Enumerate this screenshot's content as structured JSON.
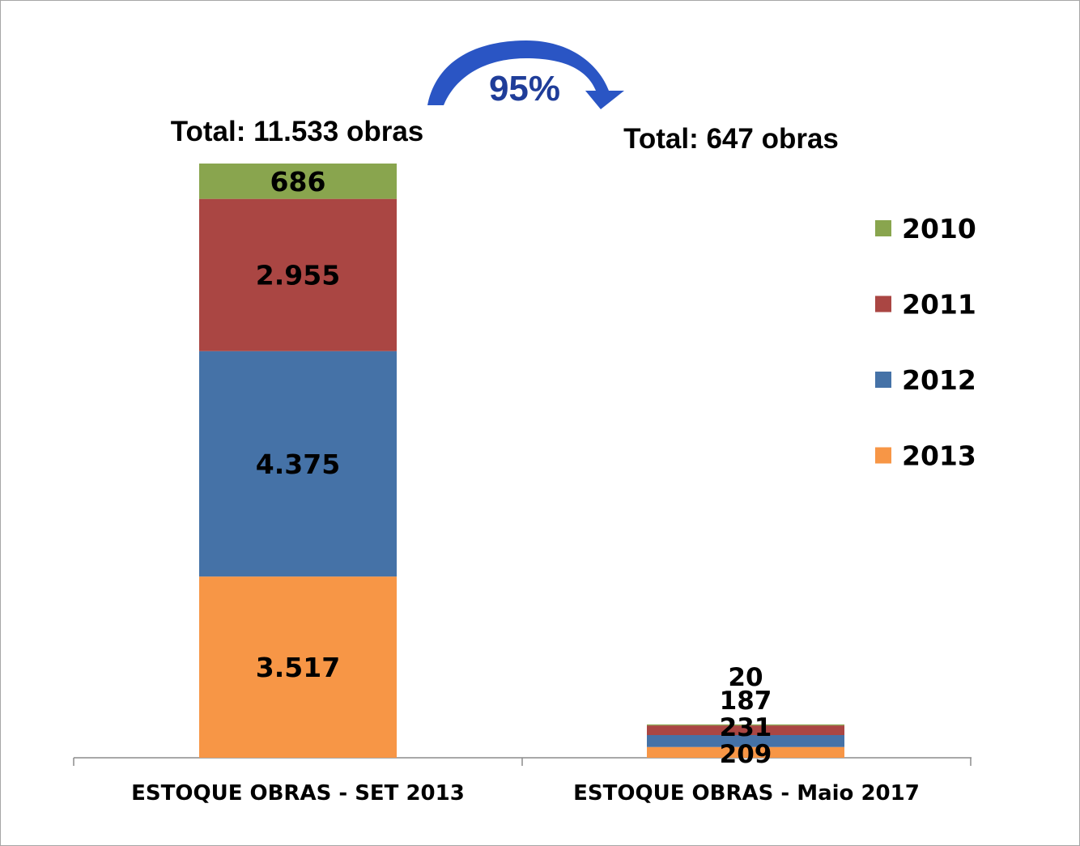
{
  "chart_data": {
    "type": "bar",
    "stacked": true,
    "categories": [
      "ESTOQUE OBRAS - SET 2013",
      "ESTOQUE OBRAS - Maio 2017"
    ],
    "series": [
      {
        "name": "2013",
        "values": [
          3517,
          209
        ],
        "labels": [
          "3.517",
          "209"
        ],
        "color": "#f79646"
      },
      {
        "name": "2012",
        "values": [
          4375,
          231
        ],
        "labels": [
          "4.375",
          "231"
        ],
        "color": "#4572a7"
      },
      {
        "name": "2011",
        "values": [
          2955,
          187
        ],
        "labels": [
          "2.955",
          "187"
        ],
        "color": "#aa4643"
      },
      {
        "name": "2010",
        "values": [
          686,
          20
        ],
        "labels": [
          "686",
          "20"
        ],
        "color": "#89a54e"
      }
    ],
    "totals": [
      "Total: 11.533 obras",
      "Total: 647 obras"
    ],
    "annotation": "95%",
    "legend_order": [
      "2010",
      "2011",
      "2012",
      "2013"
    ],
    "legend_position": "right",
    "grid": false
  }
}
